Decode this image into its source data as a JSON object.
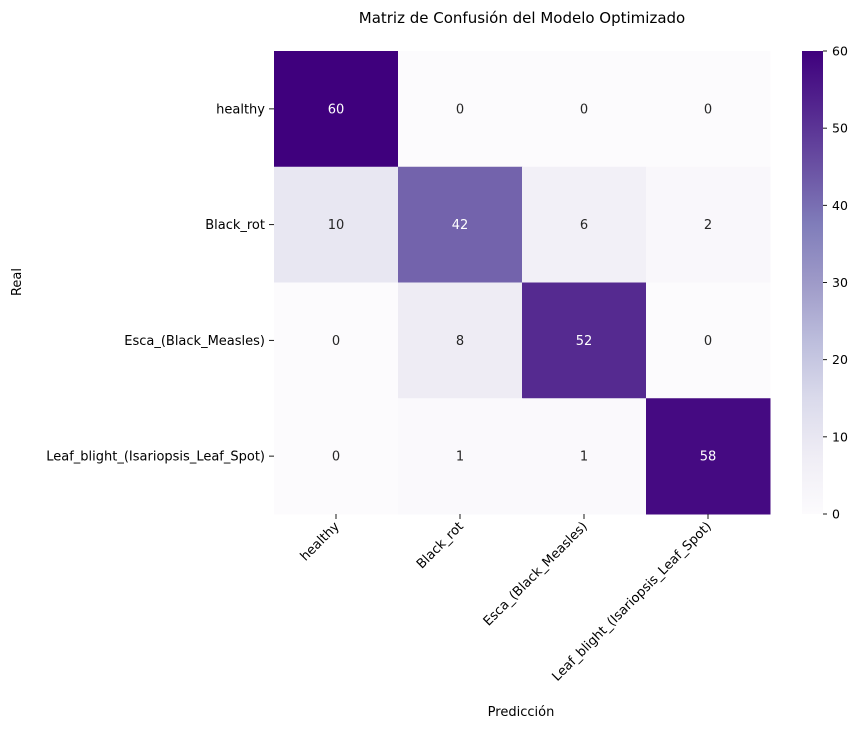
{
  "chart_data": {
    "type": "heatmap",
    "title": "Matriz de Confusión del Modelo Optimizado",
    "xlabel": "Predicción",
    "ylabel": "Real",
    "x_categories": [
      "healthy",
      "Black_rot",
      "Esca_(Black_Measles)",
      "Leaf_blight_(Isariopsis_Leaf_Spot)"
    ],
    "y_categories": [
      "healthy",
      "Black_rot",
      "Esca_(Black_Measles)",
      "Leaf_blight_(Isariopsis_Leaf_Spot)"
    ],
    "values": [
      [
        60,
        0,
        0,
        0
      ],
      [
        10,
        42,
        6,
        2
      ],
      [
        0,
        8,
        52,
        0
      ],
      [
        0,
        1,
        1,
        58
      ]
    ],
    "colorbar": {
      "min": 0,
      "max": 60,
      "ticks": [
        0,
        10,
        20,
        30,
        40,
        50,
        60
      ],
      "colormap": "Purples",
      "low_color": "#fcfbfd",
      "high_color": "#3f007d"
    }
  }
}
